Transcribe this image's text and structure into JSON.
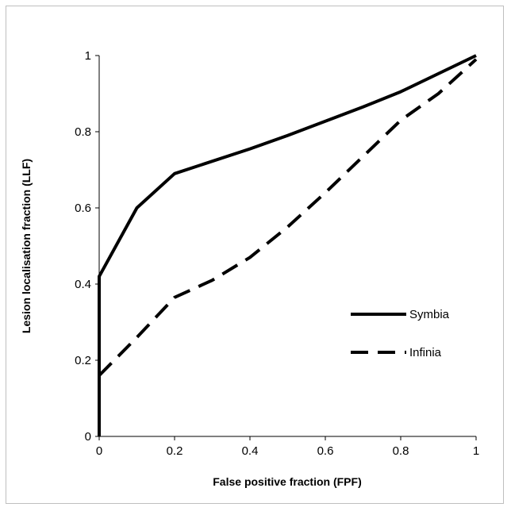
{
  "chart_data": {
    "type": "line",
    "title": "",
    "xlabel": "False positive fraction (FPF)",
    "ylabel": "Lesion localisation fraction (LLF)",
    "xlim": [
      0,
      1
    ],
    "ylim": [
      0,
      1
    ],
    "x_ticks": [
      "0",
      "0.2",
      "0.4",
      "0.6",
      "0.8",
      "1"
    ],
    "y_ticks": [
      "0",
      "0.2",
      "0.4",
      "0.6",
      "0.8",
      "1"
    ],
    "grid": false,
    "legend_position": "right",
    "series": [
      {
        "name": "Symbia",
        "style": "solid",
        "color": "#000000",
        "points": [
          [
            0,
            0
          ],
          [
            0,
            0.42
          ],
          [
            0.1,
            0.6
          ],
          [
            0.2,
            0.69
          ],
          [
            0.4,
            0.755
          ],
          [
            0.5,
            0.79
          ],
          [
            0.7,
            0.865
          ],
          [
            0.8,
            0.905
          ],
          [
            1,
            1
          ]
        ]
      },
      {
        "name": "Infinia",
        "style": "dashed",
        "color": "#000000",
        "points": [
          [
            0,
            0.16
          ],
          [
            0.1,
            0.26
          ],
          [
            0.2,
            0.365
          ],
          [
            0.3,
            0.41
          ],
          [
            0.4,
            0.47
          ],
          [
            0.5,
            0.55
          ],
          [
            0.6,
            0.64
          ],
          [
            0.7,
            0.735
          ],
          [
            0.8,
            0.83
          ],
          [
            0.9,
            0.9
          ],
          [
            1,
            0.99
          ]
        ]
      }
    ]
  }
}
